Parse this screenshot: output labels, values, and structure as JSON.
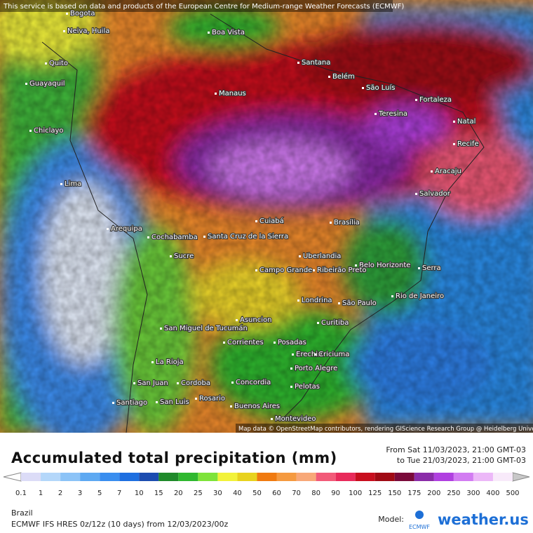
{
  "header": {
    "notice": "This service is based on data and products of the European Centre for Medium-range Weather Forecasts (ECMWF)"
  },
  "map": {
    "attribution": "Map data © OpenStreetMap contributors, rendering GIScience Research Group @ Heidelberg University",
    "cities": [
      "Bogota",
      "Neiva, Huila",
      "Boa Vista",
      "Quito",
      "Santana",
      "Belém",
      "Guayaquil",
      "São Luís",
      "Manaus",
      "Fortaleza",
      "Teresina",
      "Natal",
      "Chiclayo",
      "Recife",
      "Aracaju",
      "Lima",
      "Salvador",
      "Arequipa",
      "Cuiabá",
      "Brasília",
      "Cochabamba",
      "Santa Cruz de la Sierra",
      "Sucre",
      "Uberlandia",
      "Belo Horizonte",
      "Serra",
      "Campo Grande",
      "Ribeirão Preto",
      "Rio de Janeiro",
      "Londrina",
      "São Paulo",
      "Asuncion",
      "San Miguel de Tucumán",
      "Curitiba",
      "Corrientes",
      "Posadas",
      "Erechim",
      "Criciuma",
      "Porto Alegre",
      "La Rioja",
      "San Juan",
      "Cordoba",
      "Concordia",
      "Pelotas",
      "Rosario",
      "Santiago",
      "San Luis",
      "Buenos Aires",
      "Montevideo"
    ]
  },
  "legend": {
    "title": "Accumulated total precipitation (mm)",
    "from": "From Sat 11/03/2023, 21:00 GMT-03",
    "to": "to Tue 21/03/2023, 21:00 GMT-03",
    "ticks": [
      0.1,
      1,
      2,
      3,
      5,
      7,
      10,
      15,
      20,
      25,
      30,
      40,
      50,
      60,
      70,
      80,
      90,
      100,
      125,
      150,
      175,
      200,
      250,
      300,
      400,
      500
    ],
    "colors": [
      "#dcdcf7",
      "#b4d7fa",
      "#8cc3f7",
      "#5ea9f2",
      "#3a8eef",
      "#1e6fe0",
      "#1c4cb0",
      "#1f8a2a",
      "#2fb82f",
      "#7ee33a",
      "#f2f23a",
      "#e8d21e",
      "#f07a10",
      "#f59a40",
      "#f8a878",
      "#f25a78",
      "#e82a5a",
      "#c80e1e",
      "#a00a14",
      "#7a0a3a",
      "#8a2ca8",
      "#b040e0",
      "#d27cf2",
      "#ecb8f8",
      "#f8eafa"
    ]
  },
  "footer": {
    "region": "Brazil",
    "model_run": "ECMWF IFS HRES 0z/12z (10 days) from 12/03/2023/00z",
    "model_label": "Model:",
    "ecmwf": "ECMWF",
    "brand": "weather.us"
  }
}
